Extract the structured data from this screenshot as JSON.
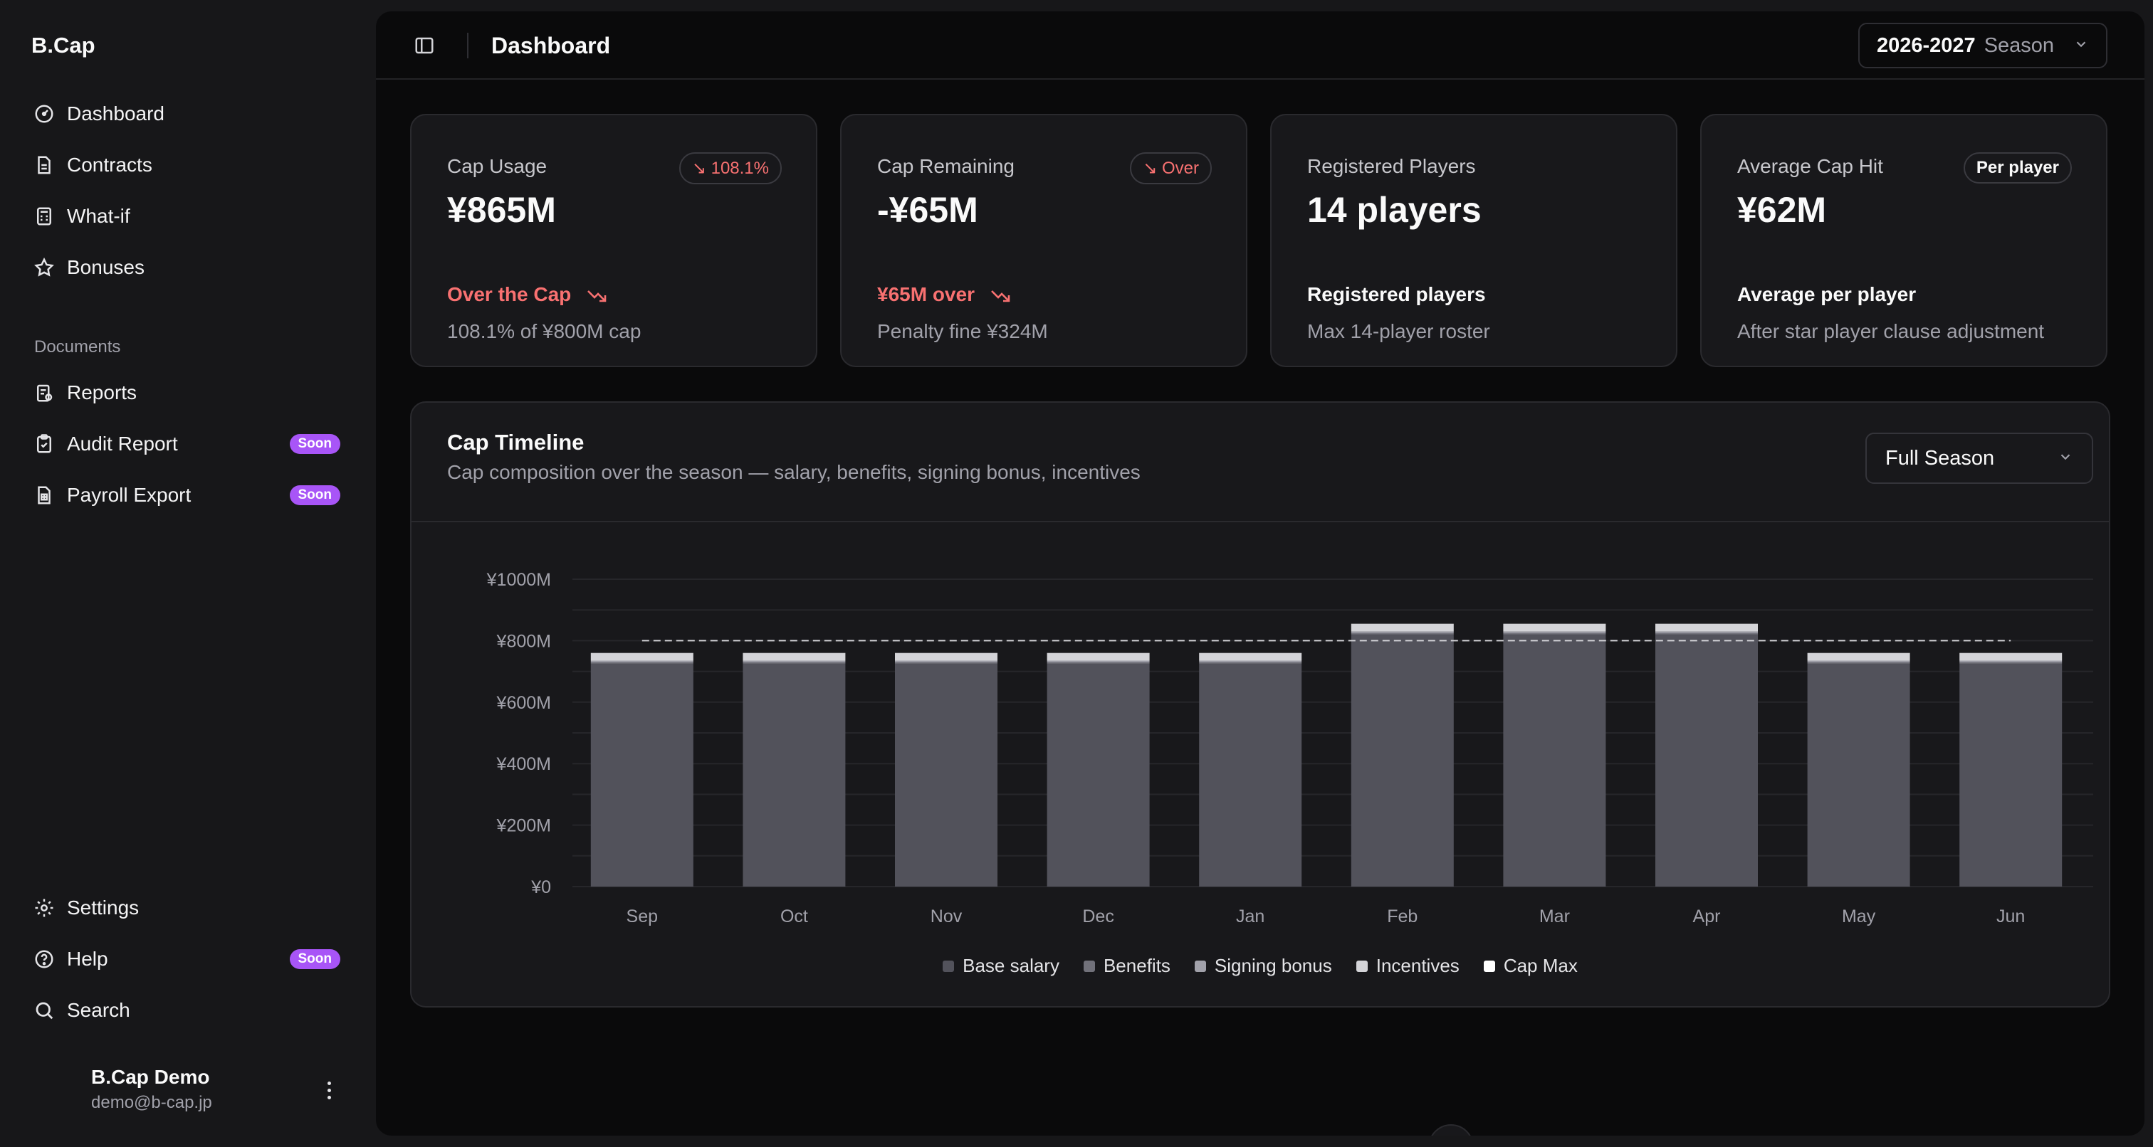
{
  "sidebar": {
    "brand": "B.Cap",
    "nav": [
      {
        "label": "Dashboard",
        "icon": "gauge-icon"
      },
      {
        "label": "Contracts",
        "icon": "document-icon"
      },
      {
        "label": "What-if",
        "icon": "calculator-icon"
      },
      {
        "label": "Bonuses",
        "icon": "star-icon"
      }
    ],
    "section_label": "Documents",
    "documents": [
      {
        "label": "Reports",
        "icon": "report-icon",
        "badge": ""
      },
      {
        "label": "Audit Report",
        "icon": "clipboard-icon",
        "badge": "Soon"
      },
      {
        "label": "Payroll Export",
        "icon": "sheet-icon",
        "badge": "Soon"
      }
    ],
    "footer_nav": [
      {
        "label": "Settings",
        "icon": "gear-icon",
        "badge": ""
      },
      {
        "label": "Help",
        "icon": "help-icon",
        "badge": "Soon"
      },
      {
        "label": "Search",
        "icon": "search-icon",
        "badge": ""
      }
    ],
    "user": {
      "name": "B.Cap Demo",
      "email": "demo@b-cap.jp"
    }
  },
  "header": {
    "title": "Dashboard",
    "season_value": "2026-2027",
    "season_label": "Season"
  },
  "cards": [
    {
      "label": "Cap Usage",
      "value": "¥865M",
      "badge": "↘ 108.1%",
      "note": "Over the Cap",
      "sub": "108.1% of ¥800M cap"
    },
    {
      "label": "Cap Remaining",
      "value": "-¥65M",
      "badge": "↘ Over",
      "note": "¥65M over",
      "sub": "Penalty fine ¥324M"
    },
    {
      "label": "Registered Players",
      "value": "14 players",
      "badge": "",
      "note": "Registered players",
      "sub": "Max 14-player roster"
    },
    {
      "label": "Average Cap Hit",
      "value": "¥62M",
      "badge": "Per player",
      "note": "Average per player",
      "sub": "After star player clause adjustment"
    }
  ],
  "timeline": {
    "title": "Cap Timeline",
    "subtitle": "Cap composition over the season — salary, benefits, signing bonus, incentives",
    "range": "Full Season"
  },
  "colors": {
    "accent_red": "#f87171",
    "badge_purple": "#a855f7",
    "bar_base": "#52525b",
    "bar_top": "#d4d4d8"
  },
  "chart_data": {
    "type": "bar",
    "stacked": true,
    "categories": [
      "Sep",
      "Oct",
      "Nov",
      "Dec",
      "Jan",
      "Feb",
      "Mar",
      "Apr",
      "May",
      "Jun"
    ],
    "series": [
      {
        "name": "Base salary",
        "color": "#52525b",
        "values": [
          725,
          725,
          725,
          725,
          725,
          820,
          820,
          820,
          725,
          725
        ]
      },
      {
        "name": "Benefits",
        "color": "#71717a",
        "values": [
          5,
          5,
          5,
          5,
          5,
          5,
          5,
          5,
          5,
          5
        ]
      },
      {
        "name": "Signing bonus",
        "color": "#a1a1aa",
        "values": [
          5,
          5,
          5,
          5,
          5,
          5,
          5,
          5,
          5,
          5
        ]
      },
      {
        "name": "Incentives",
        "color": "#d4d4d8",
        "values": [
          25,
          25,
          25,
          25,
          25,
          25,
          25,
          25,
          25,
          25
        ]
      }
    ],
    "cap_max": {
      "name": "Cap Max",
      "value": 800
    },
    "y_ticks": [
      "¥0",
      "¥200M",
      "¥400M",
      "¥600M",
      "¥800M",
      "¥1000M"
    ],
    "ylim": [
      0,
      1000
    ],
    "grid": true,
    "legend": "bottom-center"
  }
}
